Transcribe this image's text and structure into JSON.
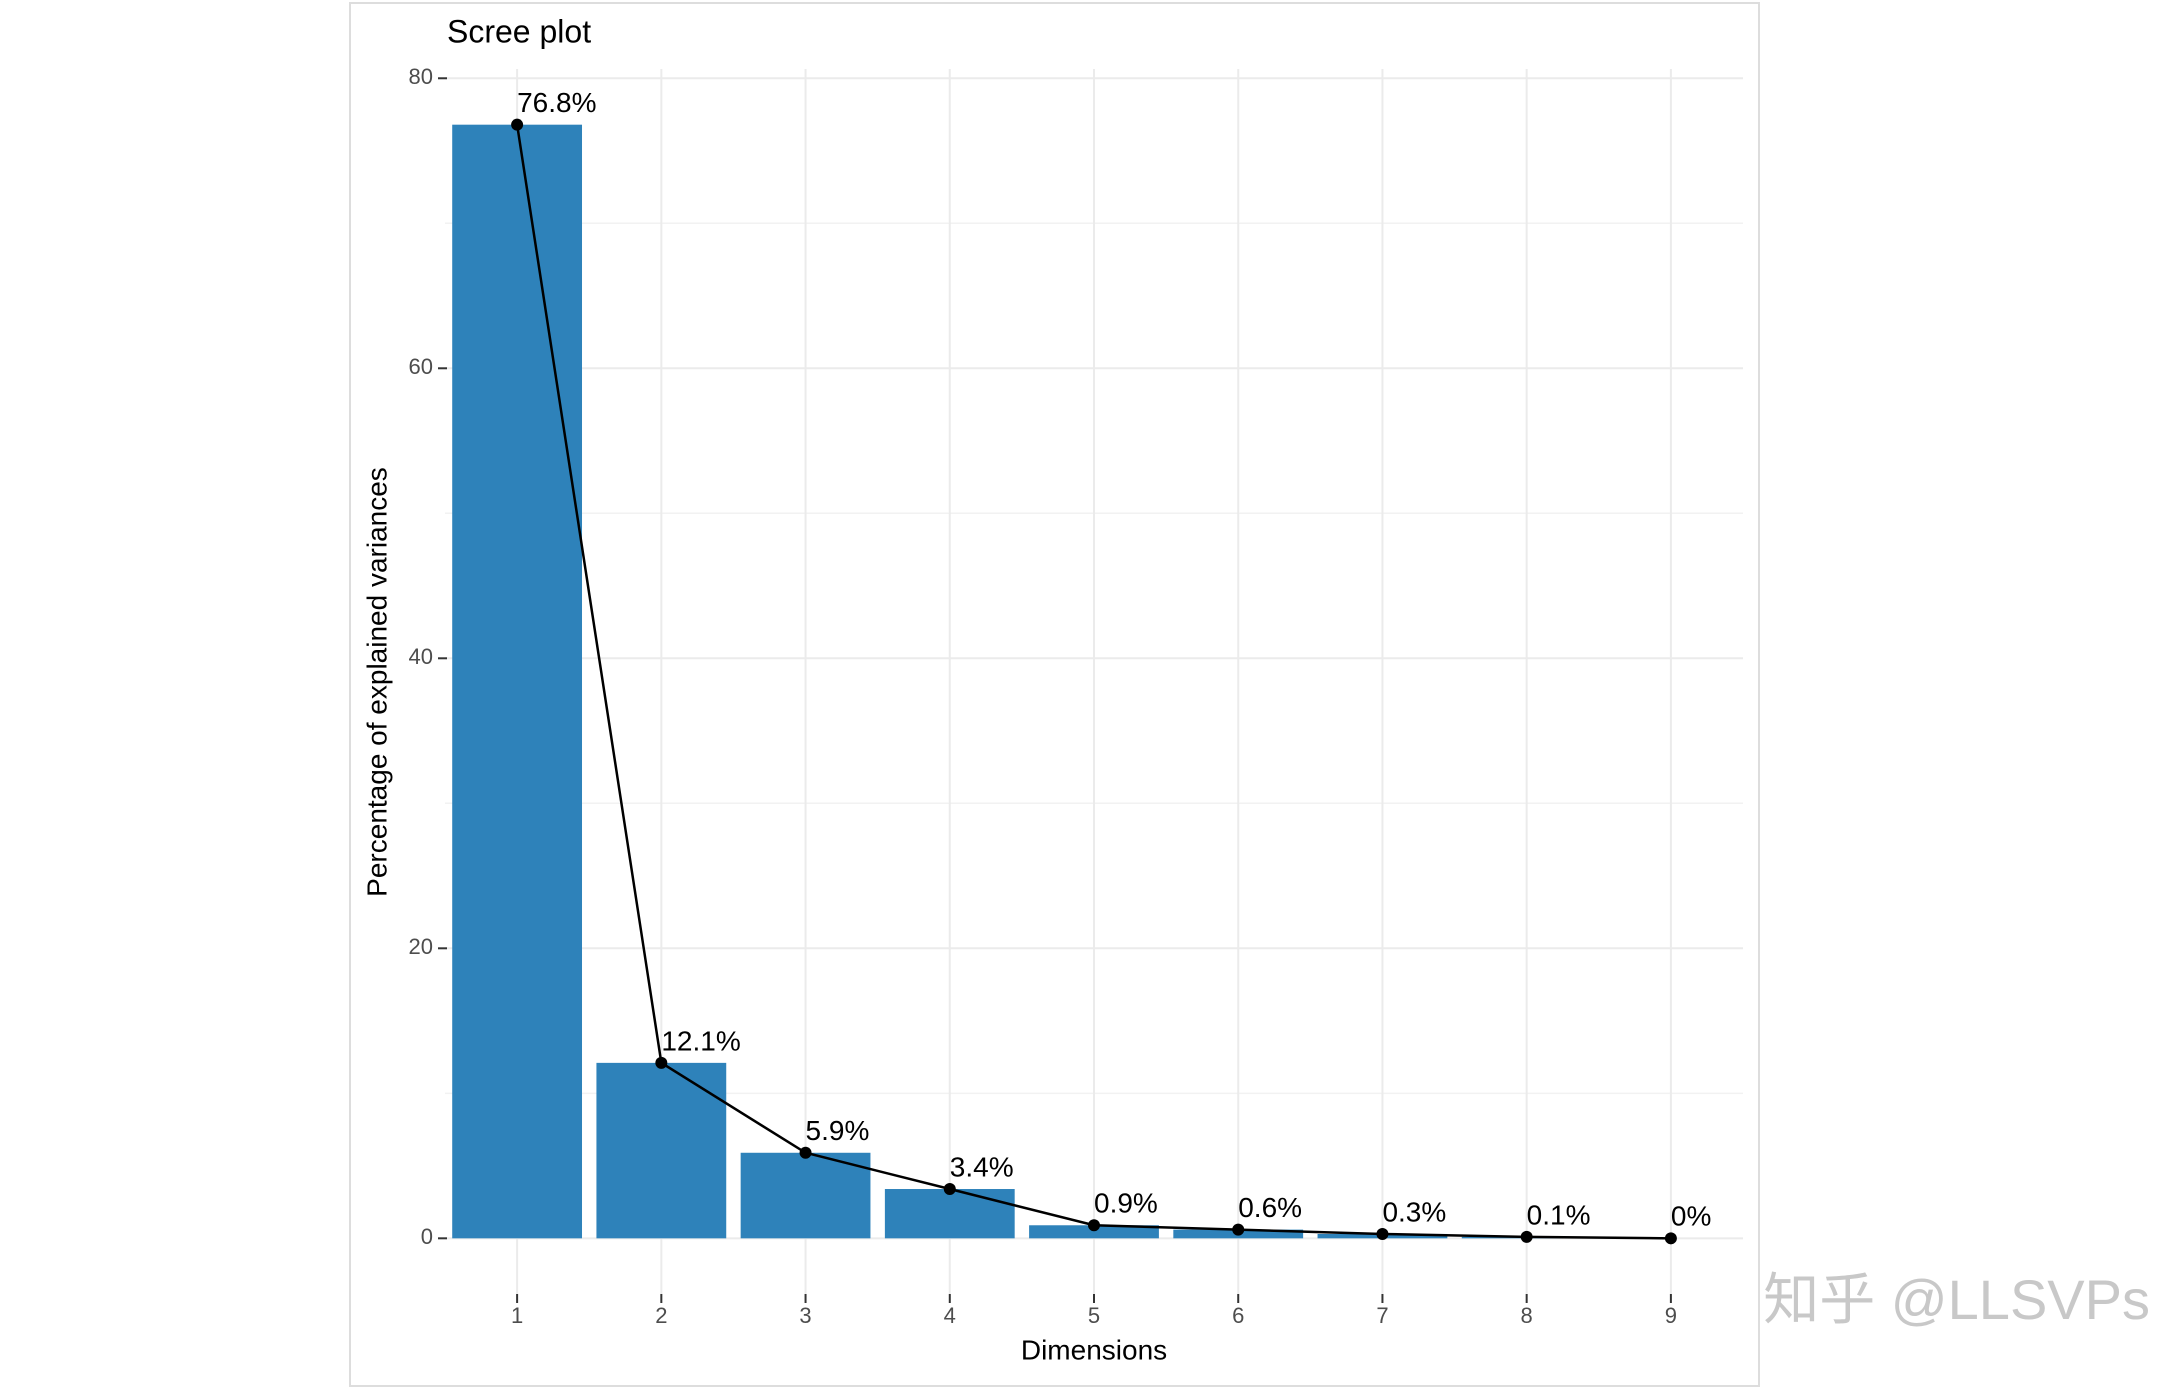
{
  "chart_data": {
    "type": "bar",
    "title": "Scree plot",
    "x_label": "Dimensions",
    "y_label": "Percentage of explained variances",
    "categories": [
      "1",
      "2",
      "3",
      "4",
      "5",
      "6",
      "7",
      "8",
      "9"
    ],
    "values": [
      76.8,
      12.1,
      5.9,
      3.4,
      0.9,
      0.6,
      0.3,
      0.1,
      0
    ],
    "value_labels": [
      "76.8%",
      "12.1%",
      "5.9%",
      "3.4%",
      "0.9%",
      "0.6%",
      "0.3%",
      "0.1%",
      "0%"
    ],
    "color": "#2e82ba",
    "line_color": "#000000",
    "ylim": [
      -3.84,
      80.64
    ],
    "yticks": [
      0,
      20,
      40,
      60,
      80
    ],
    "y_minor_gridlines": [
      10,
      30,
      50,
      70
    ],
    "grid": true
  },
  "watermark": "知乎 @LLSVPs"
}
